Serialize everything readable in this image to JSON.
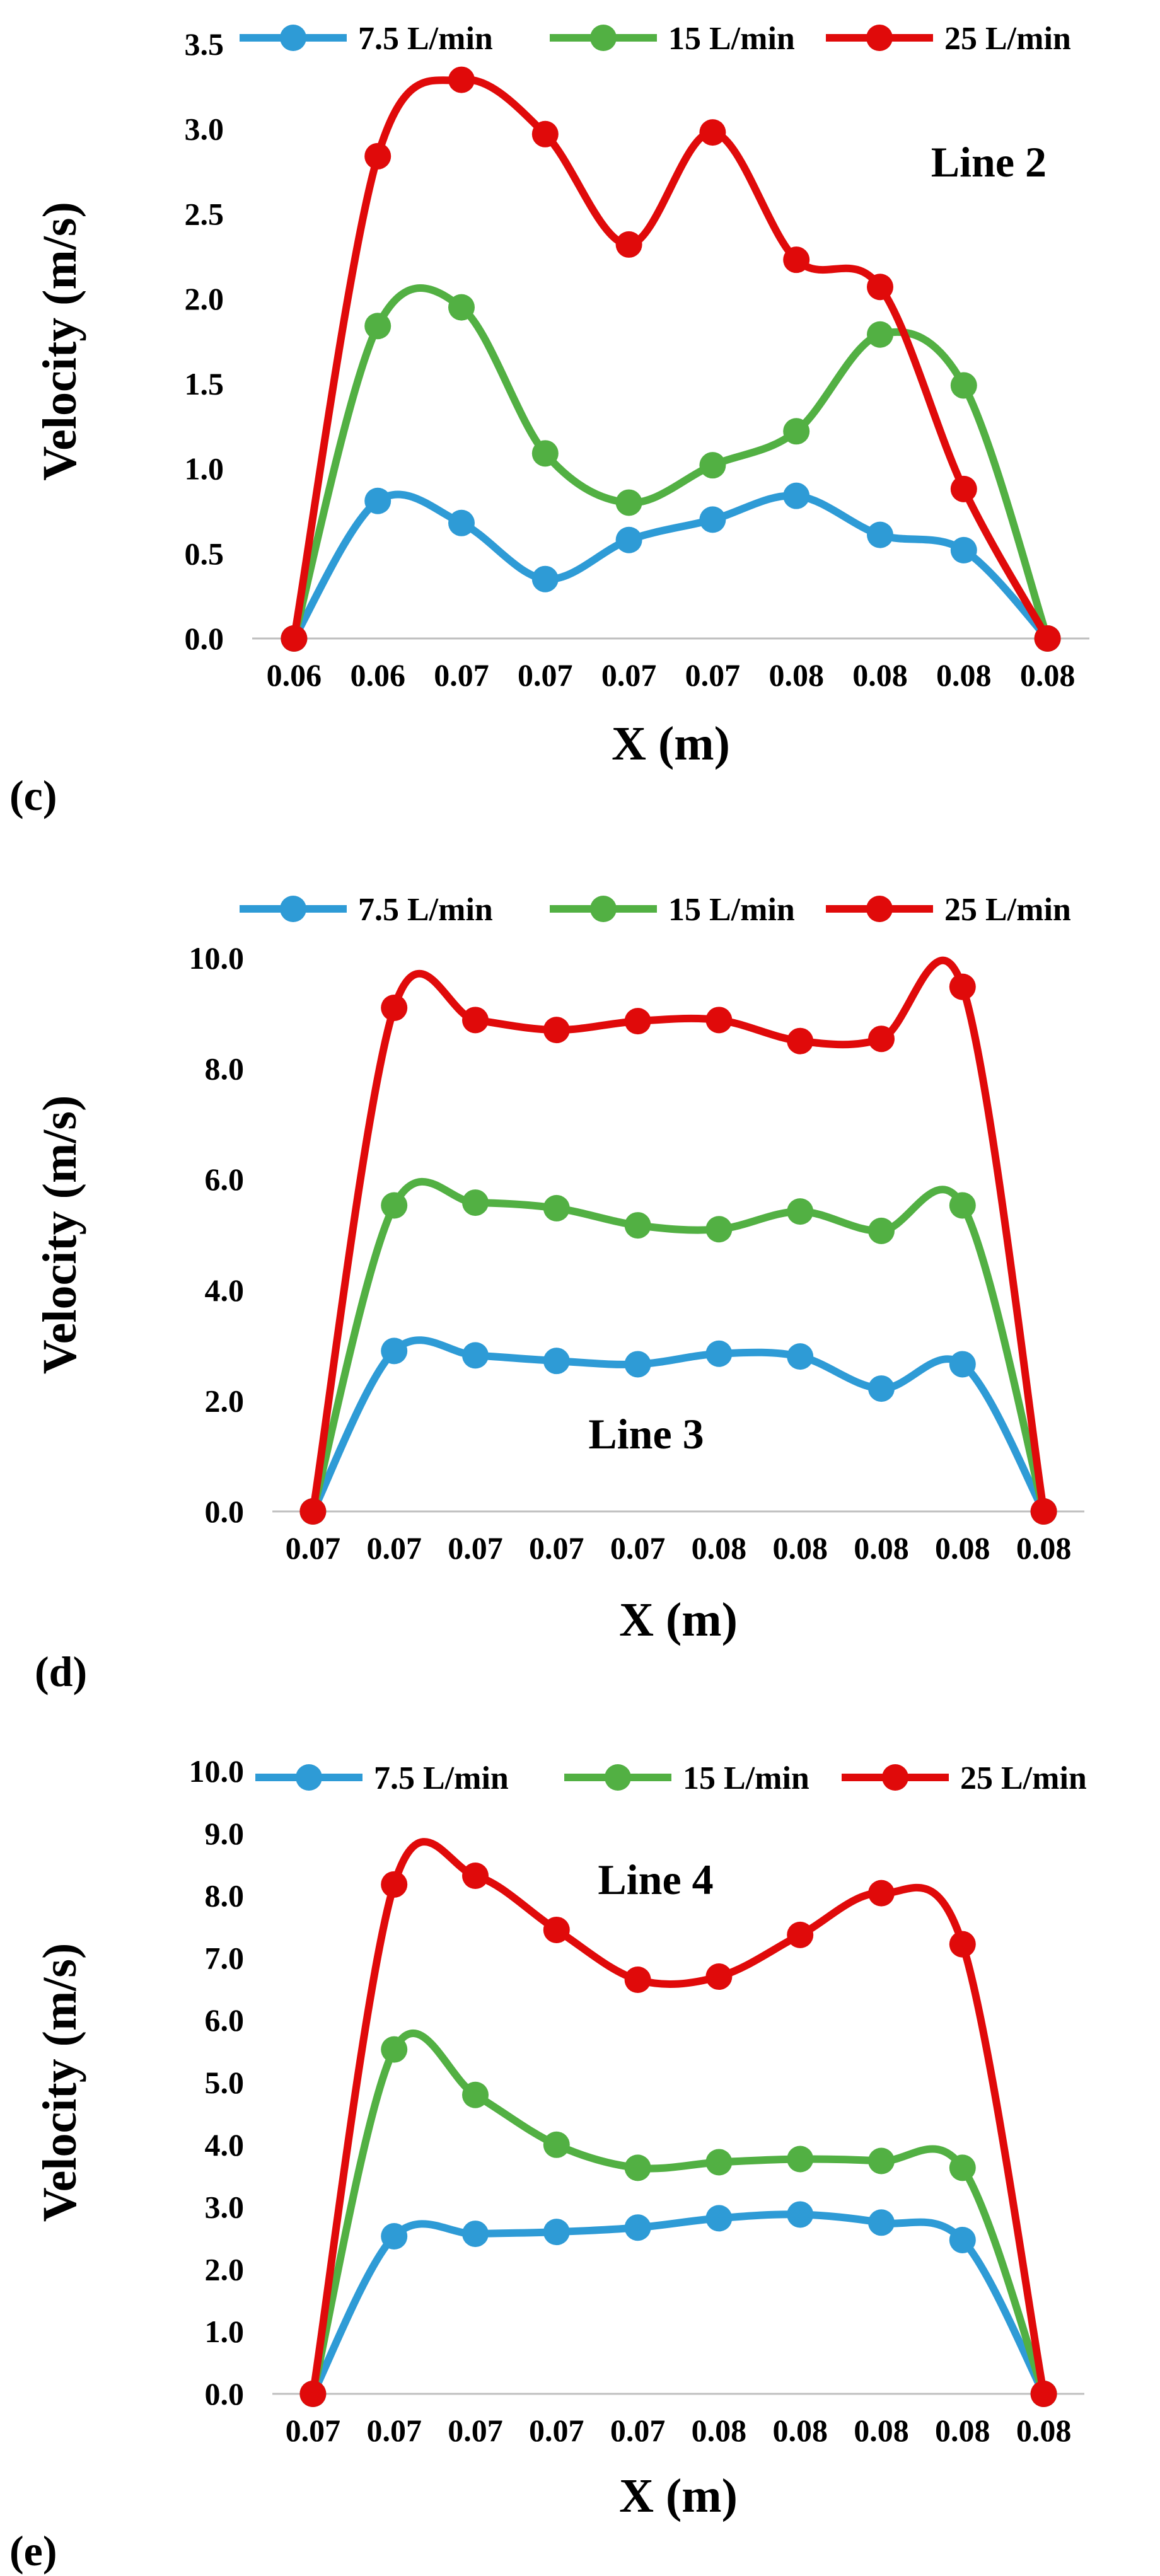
{
  "chart_data": [
    {
      "type": "line",
      "panel_label": "(c)",
      "annotation": "Line 2",
      "xlabel": "X (m)",
      "ylabel": "Velocity (m/s)",
      "categories": [
        "0.06",
        "0.06",
        "0.07",
        "0.07",
        "0.07",
        "0.07",
        "0.08",
        "0.08",
        "0.08",
        "0.08"
      ],
      "y_ticks": [
        "0.0",
        "0.5",
        "1.0",
        "1.5",
        "2.0",
        "2.5",
        "3.0",
        "3.5"
      ],
      "ylim": [
        0,
        3.5
      ],
      "grid": false,
      "legend_position": "top",
      "series": [
        {
          "name": "7.5 L/min",
          "color": "#2E9BD6",
          "values": [
            0,
            0.81,
            0.68,
            0.35,
            0.58,
            0.7,
            0.84,
            0.61,
            0.52,
            0
          ]
        },
        {
          "name": "15 L/min",
          "color": "#52B043",
          "values": [
            0,
            1.84,
            1.95,
            1.09,
            0.8,
            1.02,
            1.22,
            1.79,
            1.49,
            0
          ]
        },
        {
          "name": "25 L/min",
          "color": "#E00A0A",
          "values": [
            0,
            2.84,
            3.29,
            2.97,
            2.32,
            2.98,
            2.23,
            2.07,
            0.88,
            0
          ]
        }
      ]
    },
    {
      "type": "line",
      "panel_label": "(d)",
      "annotation": "Line 3",
      "xlabel": "X (m)",
      "ylabel": "Velocity (m/s)",
      "categories": [
        "0.07",
        "0.07",
        "0.07",
        "0.07",
        "0.07",
        "0.08",
        "0.08",
        "0.08",
        "0.08",
        "0.08"
      ],
      "y_ticks": [
        "0.0",
        "2.0",
        "4.0",
        "6.0",
        "8.0",
        "10.0"
      ],
      "ylim": [
        0,
        10
      ],
      "grid": false,
      "legend_position": "top",
      "series": [
        {
          "name": "7.5 L/min",
          "color": "#2E9BD6",
          "values": [
            0,
            2.9,
            2.82,
            2.72,
            2.66,
            2.85,
            2.8,
            2.22,
            2.66,
            0
          ]
        },
        {
          "name": "15 L/min",
          "color": "#52B043",
          "values": [
            0,
            5.53,
            5.58,
            5.48,
            5.17,
            5.1,
            5.42,
            5.07,
            5.53,
            0
          ]
        },
        {
          "name": "25 L/min",
          "color": "#E00A0A",
          "values": [
            0,
            9.1,
            8.88,
            8.7,
            8.86,
            8.88,
            8.5,
            8.54,
            9.48,
            0
          ]
        }
      ]
    },
    {
      "type": "line",
      "panel_label": "(e)",
      "annotation": "Line 4",
      "xlabel": "X (m)",
      "ylabel": "Velocity (m/s)",
      "categories": [
        "0.07",
        "0.07",
        "0.07",
        "0.07",
        "0.07",
        "0.08",
        "0.08",
        "0.08",
        "0.08",
        "0.08"
      ],
      "y_ticks": [
        "0.0",
        "1.0",
        "2.0",
        "3.0",
        "4.0",
        "5.0",
        "6.0",
        "7.0",
        "8.0",
        "9.0",
        "10.0"
      ],
      "ylim": [
        0,
        10
      ],
      "grid": false,
      "legend_position": "top",
      "series": [
        {
          "name": "7.5 L/min",
          "color": "#2E9BD6",
          "values": [
            0,
            2.53,
            2.57,
            2.6,
            2.67,
            2.82,
            2.88,
            2.75,
            2.47,
            0
          ]
        },
        {
          "name": "15 L/min",
          "color": "#52B043",
          "values": [
            0,
            5.53,
            4.8,
            4.0,
            3.63,
            3.72,
            3.77,
            3.74,
            3.63,
            0
          ]
        },
        {
          "name": "25 L/min",
          "color": "#E00A0A",
          "values": [
            0,
            8.18,
            8.32,
            7.45,
            6.65,
            6.7,
            7.37,
            8.04,
            7.22,
            0
          ]
        }
      ]
    }
  ]
}
